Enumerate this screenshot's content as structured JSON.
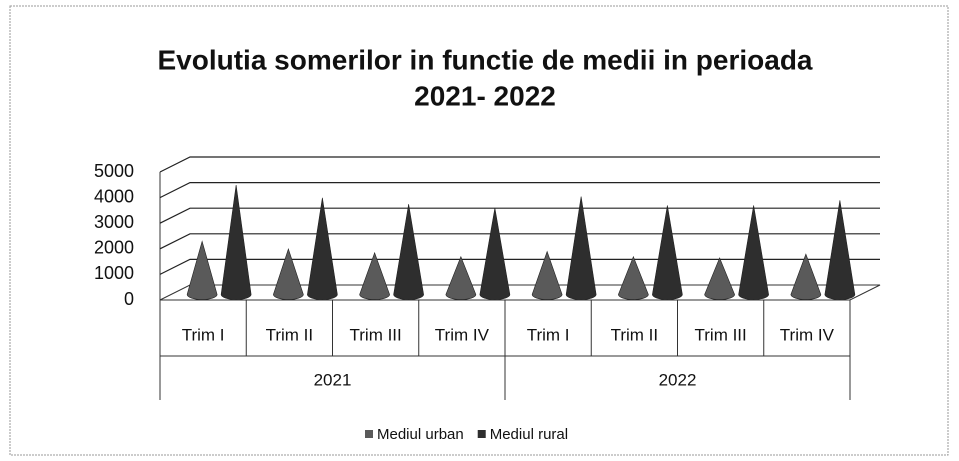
{
  "chart_data": {
    "type": "cone",
    "title": {
      "lines": [
        "Evolutia somerilor in functie de medii in perioada",
        "2021- 2022"
      ]
    },
    "categories": [
      "Trim I",
      "Trim II",
      "Trim III",
      "Trim IV",
      "Trim I",
      "Trim II",
      "Trim III",
      "Trim IV"
    ],
    "category_groups": [
      {
        "name": "2021",
        "span": 4
      },
      {
        "name": "2022",
        "span": 4
      }
    ],
    "series": [
      {
        "name": "Mediul urban",
        "color": "#5a5a5a",
        "values": [
          2000,
          1700,
          1550,
          1400,
          1600,
          1400,
          1350,
          1500
        ]
      },
      {
        "name": "Mediul rural",
        "color": "#2e2e2e",
        "values": [
          4200,
          3700,
          3450,
          3300,
          3750,
          3400,
          3400,
          3600
        ]
      }
    ],
    "ylim": [
      0,
      5000
    ],
    "yticks": [
      0,
      1000,
      2000,
      3000,
      4000,
      5000
    ],
    "grid": true,
    "legend": "bottom"
  }
}
